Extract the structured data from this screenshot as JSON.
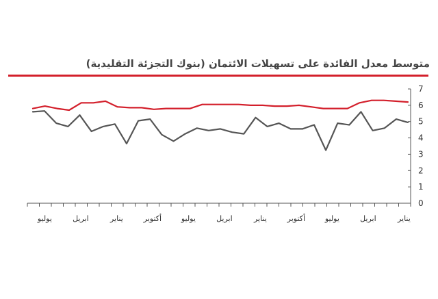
{
  "chart_data": {
    "type": "line",
    "title": "متوسط معدل الفائدة على تسهيلات الائتمان (بنوك التجزئة التقليدية)",
    "ylim": [
      0,
      7
    ],
    "yticks": [
      0,
      1,
      2,
      3,
      4,
      5,
      6,
      7
    ],
    "x_tick_labels": [
      "يناير",
      "ابريل",
      "يوليو",
      "أكتوبر",
      "يناير",
      "ابريل",
      "يوليو",
      "أكتوبر",
      "يناير",
      "ابريل",
      "يوليو"
    ],
    "x_axis_direction": "right-to-left",
    "grid": false,
    "legend": "none",
    "series": [
      {
        "color": "#d31f2b",
        "values": [
          6.2,
          6.25,
          6.3,
          6.3,
          6.15,
          5.8,
          5.8,
          5.8,
          5.9,
          6.0,
          5.95,
          5.95,
          6.0,
          6.0,
          6.05,
          6.05,
          6.05,
          6.05,
          5.8,
          5.8,
          5.8,
          5.75,
          5.85,
          5.85,
          5.9,
          6.25,
          6.15,
          6.15,
          5.7,
          5.8,
          5.95,
          5.8
        ]
      },
      {
        "color": "#555555",
        "values": [
          4.95,
          5.15,
          4.6,
          4.45,
          5.6,
          4.8,
          4.9,
          3.25,
          4.8,
          4.55,
          4.55,
          4.9,
          4.7,
          5.25,
          4.25,
          4.35,
          4.55,
          4.45,
          4.6,
          4.25,
          3.8,
          4.2,
          5.15,
          5.05,
          3.65,
          4.85,
          4.7,
          4.4,
          5.4,
          4.7,
          4.9,
          5.65,
          5.6
        ]
      }
    ]
  }
}
